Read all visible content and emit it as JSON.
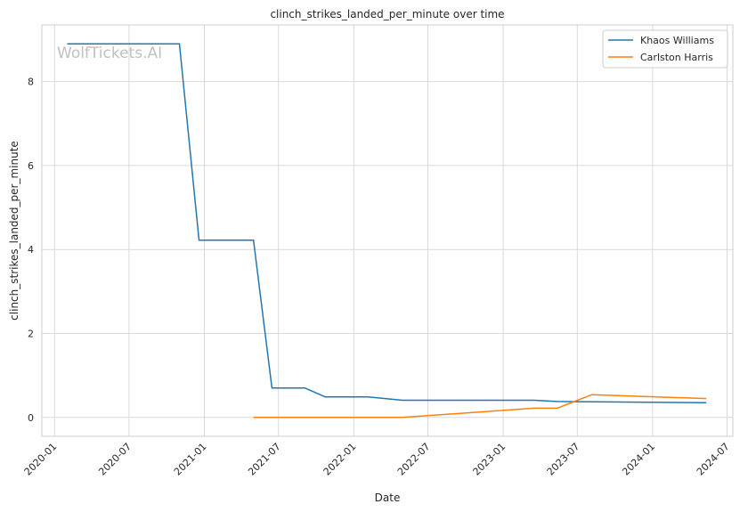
{
  "watermark": "WolfTickets.AI",
  "chart_data": {
    "type": "line",
    "title": "clinch_strikes_landed_per_minute over time",
    "xlabel": "Date",
    "ylabel": "clinch_strikes_landed_per_minute",
    "x_ticks": [
      "2020-01",
      "2020-07",
      "2021-01",
      "2021-07",
      "2022-01",
      "2022-07",
      "2023-01",
      "2023-07",
      "2024-01",
      "2024-07"
    ],
    "y_ticks": [
      0,
      2,
      4,
      6,
      8
    ],
    "xlim": [
      "2019-12-01",
      "2024-07-15"
    ],
    "ylim": [
      -0.45,
      9.35
    ],
    "grid": true,
    "legend_position": "top-right",
    "series": [
      {
        "name": "Khaos Williams",
        "color": "#1f77b4",
        "points": [
          {
            "x": "2020-02-01",
            "y": 8.9
          },
          {
            "x": "2020-11-01",
            "y": 8.9
          },
          {
            "x": "2020-12-19",
            "y": 4.22
          },
          {
            "x": "2021-05-01",
            "y": 4.22
          },
          {
            "x": "2021-06-15",
            "y": 0.7
          },
          {
            "x": "2021-09-04",
            "y": 0.7
          },
          {
            "x": "2021-10-23",
            "y": 0.49
          },
          {
            "x": "2022-02-05",
            "y": 0.49
          },
          {
            "x": "2022-04-30",
            "y": 0.41
          },
          {
            "x": "2023-03-18",
            "y": 0.41
          },
          {
            "x": "2023-05-13",
            "y": 0.38
          },
          {
            "x": "2024-05-11",
            "y": 0.35
          }
        ]
      },
      {
        "name": "Carlston Harris",
        "color": "#ff7f0e",
        "points": [
          {
            "x": "2021-05-01",
            "y": 0.0
          },
          {
            "x": "2022-04-30",
            "y": 0.0
          },
          {
            "x": "2023-03-18",
            "y": 0.22
          },
          {
            "x": "2023-05-13",
            "y": 0.22
          },
          {
            "x": "2023-08-05",
            "y": 0.54
          },
          {
            "x": "2024-05-11",
            "y": 0.45
          }
        ]
      }
    ]
  }
}
